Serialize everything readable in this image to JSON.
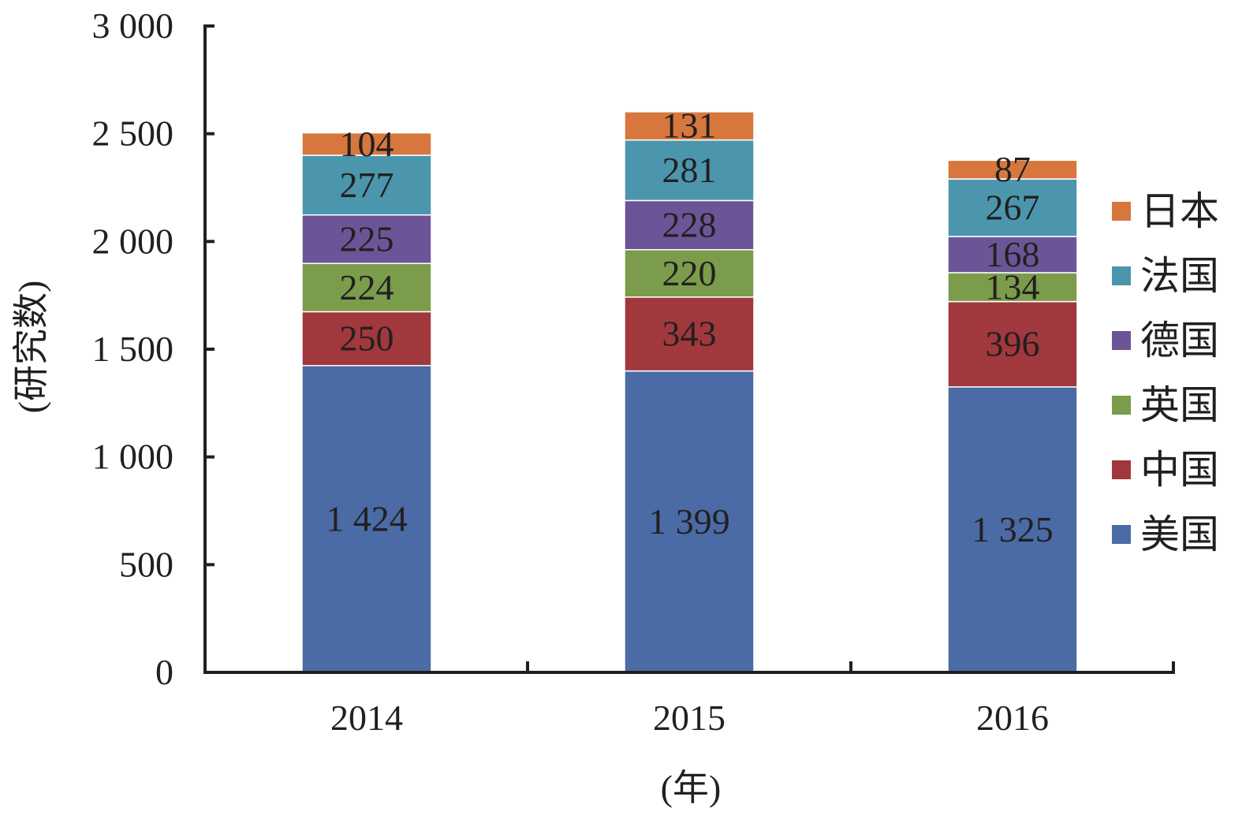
{
  "chart_data": {
    "type": "bar",
    "stacked": true,
    "categories": [
      "2014",
      "2015",
      "2016"
    ],
    "xlabel": "(年)",
    "ylabel": "(研究数)",
    "ylim": [
      0,
      3000
    ],
    "yticks": [
      0,
      500,
      1000,
      1500,
      2000,
      2500,
      3000
    ],
    "ytick_labels": [
      "0",
      "500",
      "1 000",
      "1 500",
      "2 000",
      "2 500",
      "3 000"
    ],
    "grid": false,
    "legend_position": "right",
    "series": [
      {
        "name": "美国",
        "color": "#4a6ba5",
        "values": [
          1424,
          1399,
          1325
        ],
        "labels": [
          "1 424",
          "1 399",
          "1 325"
        ]
      },
      {
        "name": "中国",
        "color": "#a0383d",
        "values": [
          250,
          343,
          396
        ],
        "labels": [
          "250",
          "343",
          "396"
        ]
      },
      {
        "name": "英国",
        "color": "#7a9c4b",
        "values": [
          224,
          220,
          134
        ],
        "labels": [
          "224",
          "220",
          "134"
        ]
      },
      {
        "name": "德国",
        "color": "#6c5596",
        "values": [
          225,
          228,
          168
        ],
        "labels": [
          "225",
          "228",
          "168"
        ]
      },
      {
        "name": "法国",
        "color": "#4b96ad",
        "values": [
          277,
          281,
          267
        ],
        "labels": [
          "277",
          "281",
          "267"
        ]
      },
      {
        "name": "日本",
        "color": "#d7773d",
        "values": [
          104,
          131,
          87
        ],
        "labels": [
          "104",
          "131",
          "87"
        ]
      }
    ]
  }
}
